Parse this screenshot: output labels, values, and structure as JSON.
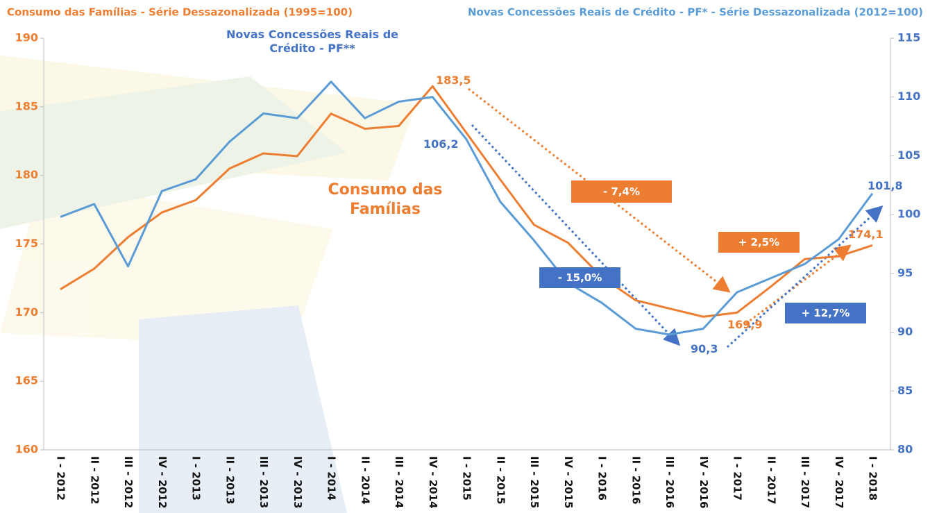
{
  "chart_data": {
    "type": "line",
    "title": "Consumo das Famílias  - Série Dessazonalizada (1995=100)",
    "y2_title": "Novas Concessões Reais de Crédito - PF* - Série Dessazonalizada (2012=100)",
    "categories": [
      "I - 2012",
      "II - 2012",
      "III - 2012",
      "IV - 2012",
      "I - 2013",
      "II - 2013",
      "III - 2013",
      "IV - 2013",
      "I - 2014",
      "II - 2014",
      "III - 2014",
      "IV - 2014",
      "I - 2015",
      "II - 2015",
      "III - 2015",
      "IV - 2015",
      "I - 2016",
      "II - 2016",
      "III - 2016",
      "IV - 2016",
      "I - 2017",
      "II - 2017",
      "III - 2017",
      "IV - 2017",
      "I - 2018"
    ],
    "series": [
      {
        "name": "Consumo das Famílias",
        "color": "#ED7D31",
        "values": [
          171.7,
          173.2,
          175.5,
          177.3,
          178.2,
          180.5,
          181.6,
          181.4,
          184.5,
          183.4,
          183.6,
          186.5,
          183.1,
          179.7,
          176.4,
          175.1,
          172.6,
          170.9,
          170.3,
          169.7,
          170.0,
          171.9,
          173.9,
          174.1,
          174.9
        ]
      },
      {
        "name": "Novas Concessões Reais de Crédito - PF**",
        "color": "#5B9BD5",
        "axis": "y2",
        "values": [
          99.8,
          100.9,
          95.6,
          102.0,
          103.0,
          106.2,
          108.6,
          108.2,
          111.3,
          108.2,
          109.6,
          110.0,
          106.4,
          101.1,
          97.8,
          94.2,
          92.5,
          90.3,
          89.8,
          90.3,
          93.4,
          94.6,
          95.8,
          97.9,
          101.8
        ]
      }
    ],
    "ylim": [
      160,
      190
    ],
    "yticks": [
      160,
      165,
      170,
      175,
      180,
      185,
      190
    ],
    "y2lim": [
      80,
      115
    ],
    "y2ticks": [
      80,
      85,
      90,
      95,
      100,
      105,
      110,
      115
    ],
    "annotations": [
      "183,5",
      "106,2",
      "90,3",
      "169,9",
      "174,1",
      "101,8",
      "- 7,4%",
      "- 15,0%",
      "+ 2,5%",
      "+ 12,7%"
    ]
  }
}
